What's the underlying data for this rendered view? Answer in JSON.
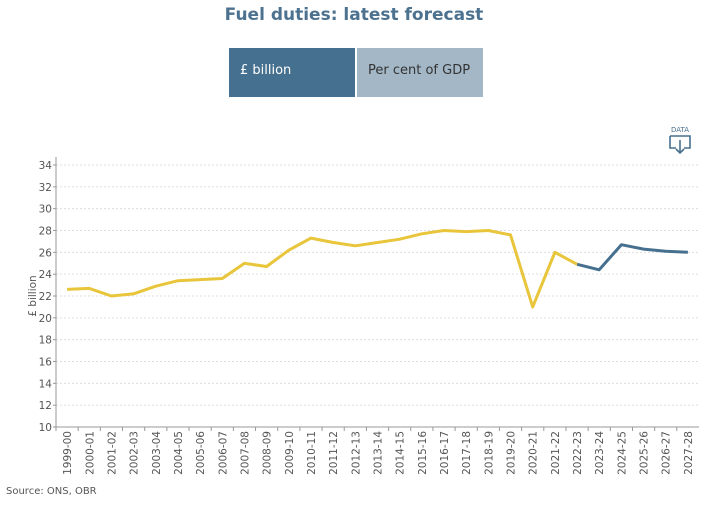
{
  "chart_data": {
    "type": "line",
    "title": "Fuel duties: latest forecast",
    "buttons": [
      "£ billion",
      "Per cent of GDP"
    ],
    "data_icon": "DATA",
    "ylabel": "£ billion",
    "source": "Source: ONS, OBR",
    "categories": [
      "1999-00",
      "2000-01",
      "2001-02",
      "2002-03",
      "2003-04",
      "2004-05",
      "2005-06",
      "2006-07",
      "2007-08",
      "2008-09",
      "2009-10",
      "2010-11",
      "2011-12",
      "2012-13",
      "2013-14",
      "2014-15",
      "2015-16",
      "2016-17",
      "2017-18",
      "2018-19",
      "2019-20",
      "2020-21",
      "2021-22",
      "2022-23",
      "2023-24",
      "2024-25",
      "2025-26",
      "2026-27",
      "2027-28"
    ],
    "series": [
      {
        "color": "#e8c53a",
        "values": [
          22.6,
          22.7,
          22.0,
          22.2,
          22.9,
          23.4,
          23.5,
          23.6,
          25.0,
          24.7,
          26.2,
          27.3,
          26.9,
          26.6,
          26.9,
          27.2,
          27.7,
          28.0,
          27.9,
          28.0,
          27.6,
          21.0,
          26.0,
          24.9,
          null,
          null,
          null,
          null,
          null
        ]
      },
      {
        "color": "#46708f",
        "values": [
          null,
          null,
          null,
          null,
          null,
          null,
          null,
          null,
          null,
          null,
          null,
          null,
          null,
          null,
          null,
          null,
          null,
          null,
          null,
          null,
          null,
          null,
          null,
          24.9,
          24.4,
          26.7,
          26.3,
          26.1,
          26.0
        ]
      }
    ],
    "ylim": [
      10,
      34
    ],
    "yticks": [
      10,
      12,
      14,
      16,
      18,
      20,
      22,
      24,
      26,
      28,
      30,
      32,
      34
    ],
    "grid": true
  }
}
